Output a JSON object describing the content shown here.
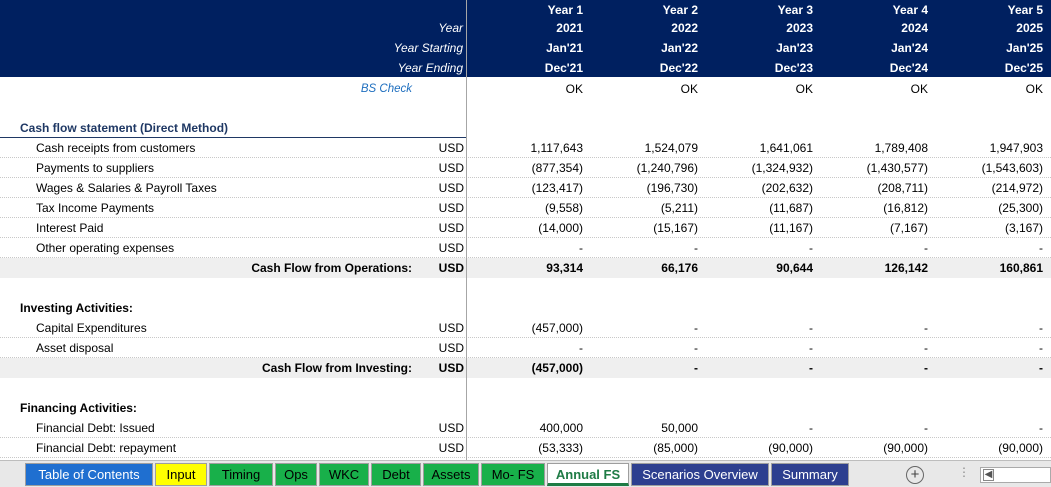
{
  "header": {
    "year_label": "Year",
    "year_starting_label": "Year Starting",
    "year_ending_label": "Year Ending",
    "columns": [
      {
        "title": "Year 1",
        "year": "2021",
        "start": "Jan'21",
        "end": "Dec'21"
      },
      {
        "title": "Year 2",
        "year": "2022",
        "start": "Jan'22",
        "end": "Dec'22"
      },
      {
        "title": "Year 3",
        "year": "2023",
        "start": "Jan'23",
        "end": "Dec'23"
      },
      {
        "title": "Year 4",
        "year": "2024",
        "start": "Jan'24",
        "end": "Dec'24"
      },
      {
        "title": "Year 5",
        "year": "2025",
        "start": "Jan'25",
        "end": "Dec'25"
      }
    ]
  },
  "bs_check": {
    "label": "BS Check",
    "values": [
      "OK",
      "OK",
      "OK",
      "OK",
      "OK"
    ]
  },
  "cash_flow": {
    "title": "Cash flow statement (Direct Method)",
    "operations": [
      {
        "label": "Cash receipts from customers",
        "unit": "USD",
        "values": [
          "1,117,643",
          "1,524,079",
          "1,641,061",
          "1,789,408",
          "1,947,903"
        ]
      },
      {
        "label": "Payments to suppliers",
        "unit": "USD",
        "values": [
          "(877,354)",
          "(1,240,796)",
          "(1,324,932)",
          "(1,430,577)",
          "(1,543,603)"
        ]
      },
      {
        "label": "Wages & Salaries & Payroll Taxes",
        "unit": "USD",
        "values": [
          "(123,417)",
          "(196,730)",
          "(202,632)",
          "(208,711)",
          "(214,972)"
        ]
      },
      {
        "label": "Tax Income Payments",
        "unit": "USD",
        "values": [
          "(9,558)",
          "(5,211)",
          "(11,687)",
          "(16,812)",
          "(25,300)"
        ]
      },
      {
        "label": "Interest Paid",
        "unit": "USD",
        "values": [
          "(14,000)",
          "(15,167)",
          "(11,167)",
          "(7,167)",
          "(3,167)"
        ]
      },
      {
        "label": "Other operating expenses",
        "unit": "USD",
        "values": [
          "-",
          "-",
          "-",
          "-",
          "-"
        ]
      }
    ],
    "operations_total": {
      "label": "Cash Flow from Operations:",
      "unit": "USD",
      "values": [
        "93,314",
        "66,176",
        "90,644",
        "126,142",
        "160,861"
      ]
    },
    "investing_title": "Investing Activities:",
    "investing": [
      {
        "label": "Capital Expenditures",
        "unit": "USD",
        "values": [
          "(457,000)",
          "-",
          "-",
          "-",
          "-"
        ]
      },
      {
        "label": "Asset disposal",
        "unit": "USD",
        "values": [
          "-",
          "-",
          "-",
          "-",
          "-"
        ]
      }
    ],
    "investing_total": {
      "label": "Cash Flow from Investing:",
      "unit": "USD",
      "values": [
        "(457,000)",
        "-",
        "-",
        "-",
        "-"
      ]
    },
    "financing_title": "Financing Activities:",
    "financing": [
      {
        "label": "Financial Debt: Issued",
        "unit": "USD",
        "values": [
          "400,000",
          "50,000",
          "-",
          "-",
          "-"
        ]
      },
      {
        "label": "Financial Debt: repayment",
        "unit": "USD",
        "values": [
          "(53,333)",
          "(85,000)",
          "(90,000)",
          "(90,000)",
          "(90,000)"
        ]
      }
    ]
  },
  "tabs": [
    {
      "label": "Table of Contents",
      "color": "#1f6fd0"
    },
    {
      "label": "Input",
      "color": "#ffff00"
    },
    {
      "label": "Timing",
      "color": "#18b04a"
    },
    {
      "label": "Ops",
      "color": "#18b04a"
    },
    {
      "label": "WKC",
      "color": "#18b04a"
    },
    {
      "label": "Debt",
      "color": "#18b04a"
    },
    {
      "label": "Assets",
      "color": "#18b04a"
    },
    {
      "label": "Mo- FS",
      "color": "#18b04a"
    },
    {
      "label": "Annual FS",
      "color": "#ffffff",
      "active": true
    },
    {
      "label": "Scenarios Overview",
      "color": "#2d3f8f"
    },
    {
      "label": "Summary",
      "color": "#2d3f8f"
    }
  ],
  "icons": {
    "add_sheet": "plus-circle-icon",
    "options": "vertical-dots-icon",
    "scroll_left": "triangle-left-icon"
  },
  "colors": {
    "header_bg": "#002060",
    "active_tab_text": "#1e7b45"
  }
}
